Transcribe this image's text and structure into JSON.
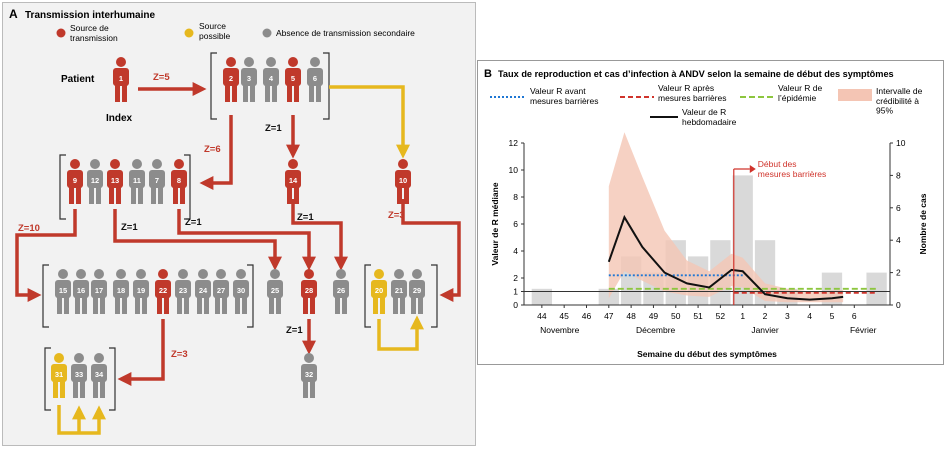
{
  "panelA": {
    "label": "A",
    "title": "Transmission interhumaine",
    "legend": {
      "source": "Source de\ntransmission",
      "possible": "Source\npossible",
      "none": "Absence de transmission secondaire"
    },
    "patient_label": "Patient",
    "index_label": "Index",
    "z_labels": [
      "Z=5",
      "Z=1",
      "Z=6",
      "Z=1",
      "Z=3",
      "Z=10",
      "Z=1",
      "Z=1",
      "Z=1",
      "Z=3"
    ],
    "colors": {
      "red": "#c0392b",
      "yellow": "#e6b81e",
      "gray": "#8c8c8c"
    },
    "people": [
      {
        "id": "1",
        "c": "red"
      },
      {
        "id": "2",
        "c": "red"
      },
      {
        "id": "3",
        "c": "gray"
      },
      {
        "id": "4",
        "c": "gray"
      },
      {
        "id": "5",
        "c": "red"
      },
      {
        "id": "6",
        "c": "gray"
      },
      {
        "id": "9",
        "c": "red"
      },
      {
        "id": "12",
        "c": "gray"
      },
      {
        "id": "13",
        "c": "red"
      },
      {
        "id": "11",
        "c": "gray"
      },
      {
        "id": "7",
        "c": "gray"
      },
      {
        "id": "8",
        "c": "red"
      },
      {
        "id": "14",
        "c": "red"
      },
      {
        "id": "10",
        "c": "red"
      },
      {
        "id": "15",
        "c": "gray"
      },
      {
        "id": "16",
        "c": "gray"
      },
      {
        "id": "17",
        "c": "gray"
      },
      {
        "id": "18",
        "c": "gray"
      },
      {
        "id": "19",
        "c": "gray"
      },
      {
        "id": "22",
        "c": "red"
      },
      {
        "id": "23",
        "c": "gray"
      },
      {
        "id": "24",
        "c": "gray"
      },
      {
        "id": "27",
        "c": "gray"
      },
      {
        "id": "30",
        "c": "gray"
      },
      {
        "id": "25",
        "c": "gray"
      },
      {
        "id": "28",
        "c": "red"
      },
      {
        "id": "26",
        "c": "gray"
      },
      {
        "id": "20",
        "c": "yellow"
      },
      {
        "id": "21",
        "c": "gray"
      },
      {
        "id": "29",
        "c": "gray"
      },
      {
        "id": "32",
        "c": "gray"
      },
      {
        "id": "31",
        "c": "yellow"
      },
      {
        "id": "33",
        "c": "gray"
      },
      {
        "id": "34",
        "c": "gray"
      }
    ]
  },
  "chart_data": {
    "type": "line",
    "label": "B",
    "title": "Taux de reproduction et cas d’infection à ANDV selon la semaine de début des symptômes",
    "xlabel": "Semaine du début des symptômes",
    "ylabel": "Valeur de R médiane",
    "y2label": "Nombre de cas",
    "x_ticks": [
      "44",
      "45",
      "46",
      "47",
      "48",
      "49",
      "50",
      "51",
      "52",
      "1",
      "2",
      "3",
      "4",
      "5",
      "6"
    ],
    "month_labels": [
      "Novembre",
      "Décembre",
      "Janvier",
      "Février"
    ],
    "ylim": [
      0,
      12
    ],
    "y_ticks": [
      0,
      1,
      2,
      4,
      6,
      8,
      10,
      12
    ],
    "y2lim": [
      0,
      10
    ],
    "y2_ticks": [
      0,
      2,
      4,
      6,
      8,
      10
    ],
    "legend": {
      "before": "Valeur R avant\nmesures barrières",
      "after": "Valeur R après\nmesures barrières",
      "epidemic": "Valeur R de\nl’épidémie",
      "ci": "Intervalle de\ncrédibilité à\n95%",
      "weekly": "Valeur de R\nhebdomadaire"
    },
    "annotation": "Début des\nmesures barrières",
    "cases": [
      1,
      0,
      0,
      1,
      3,
      2,
      4,
      3,
      4,
      8,
      4,
      1,
      0,
      2,
      0,
      2
    ],
    "case_x": [
      44,
      45,
      46,
      47,
      48,
      49,
      50,
      51,
      52,
      53,
      54,
      55,
      56,
      57,
      58,
      59
    ],
    "weekly_R": {
      "x": [
        47,
        47.7,
        48.5,
        49.5,
        50.5,
        51.5,
        52.5,
        53,
        54,
        55,
        56,
        57,
        57.5
      ],
      "y": [
        3.2,
        6.5,
        4.3,
        2.4,
        1.6,
        1.3,
        2.6,
        2.5,
        0.8,
        0.5,
        0.4,
        0.5,
        0.6
      ]
    },
    "ci_upper": {
      "x": [
        47,
        47.7,
        48.5,
        49.5,
        50.5,
        51.5,
        52.5,
        53,
        54,
        55,
        56,
        57.5
      ],
      "y": [
        8.8,
        12.8,
        9.5,
        5.5,
        3.3,
        2.5,
        3.8,
        3.5,
        1.6,
        1.2,
        1.0,
        1.1
      ]
    },
    "ci_lower": {
      "x": [
        47,
        47.7,
        48.5,
        49.5,
        50.5,
        51.5,
        52.5,
        53,
        54,
        55,
        56,
        57.5
      ],
      "y": [
        0.5,
        2.5,
        1.8,
        1.0,
        0.7,
        0.6,
        1.4,
        1.3,
        0.3,
        0.2,
        0.2,
        0.2
      ]
    },
    "R_before": {
      "x": [
        47,
        53
      ],
      "y": 2.2
    },
    "R_after": {
      "x": [
        52.6,
        59
      ],
      "y": 0.9
    },
    "R_epidemic": {
      "x": [
        47,
        59
      ],
      "y": 1.2
    },
    "intervention_week": 52.6,
    "colors": {
      "before": "#1f77d4",
      "after": "#d0342c",
      "epidemic": "#8dc63f",
      "ci": "#f4c5b4",
      "weekly": "#111111",
      "bars": "#d9d9d9",
      "annot": "#d0342c"
    }
  }
}
